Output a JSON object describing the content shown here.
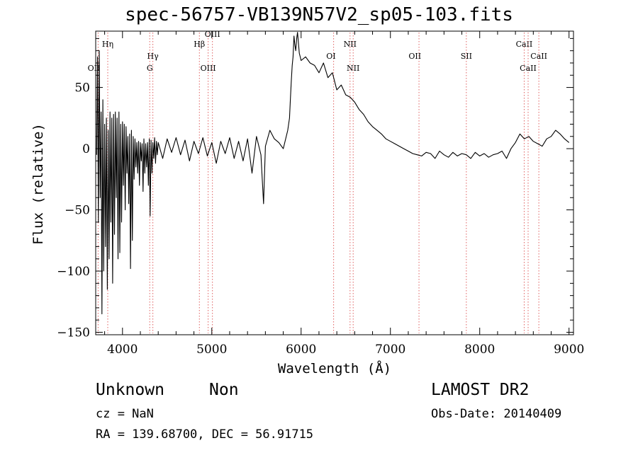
{
  "page": {
    "obj_class": "Unknown",
    "obj_subclass": "Non",
    "survey": "LAMOST DR2",
    "cz": "cz = NaN",
    "obs_date": "Obs-Date: 20140409",
    "ra_dec": "RA = 139.68700, DEC =  56.91715"
  },
  "colors": {
    "spectrum": "#000000",
    "lines": "#e06060",
    "axes": "#000000"
  },
  "chart_data": {
    "type": "line",
    "title": "spec-56757-VB139N57V2_sp05-103.fits",
    "xlabel": "Wavelength (Å)",
    "ylabel": "Flux (relative)",
    "xlim": [
      3700,
      9050
    ],
    "ylim": [
      -152,
      96
    ],
    "xticks": [
      4000,
      5000,
      6000,
      7000,
      8000,
      9000
    ],
    "xtick_labels": [
      "4000",
      "5000",
      "6000",
      "7000",
      "8000",
      "9000"
    ],
    "yticks": [
      50,
      0,
      -50,
      -100,
      -150
    ],
    "ytick_labels": [
      "50",
      "0",
      "−50",
      "−100",
      "−150"
    ],
    "grid": false,
    "spectrum": {
      "x": [
        3710,
        3720,
        3730,
        3740,
        3750,
        3760,
        3770,
        3780,
        3790,
        3800,
        3810,
        3820,
        3830,
        3840,
        3850,
        3860,
        3870,
        3880,
        3890,
        3900,
        3910,
        3920,
        3930,
        3940,
        3950,
        3960,
        3970,
        3980,
        3990,
        4000,
        4010,
        4020,
        4030,
        4040,
        4050,
        4060,
        4070,
        4080,
        4090,
        4100,
        4110,
        4120,
        4130,
        4140,
        4150,
        4160,
        4170,
        4180,
        4190,
        4200,
        4210,
        4220,
        4230,
        4240,
        4250,
        4260,
        4270,
        4280,
        4290,
        4300,
        4310,
        4320,
        4330,
        4340,
        4350,
        4360,
        4370,
        4380,
        4390,
        4400,
        4450,
        4500,
        4550,
        4600,
        4650,
        4700,
        4750,
        4800,
        4850,
        4900,
        4950,
        5000,
        5050,
        5100,
        5150,
        5200,
        5250,
        5300,
        5350,
        5400,
        5450,
        5500,
        5550,
        5580,
        5600,
        5650,
        5700,
        5750,
        5800,
        5850,
        5870,
        5880,
        5890,
        5900,
        5910,
        5920,
        5930,
        5940,
        5950,
        5960,
        5980,
        6000,
        6050,
        6100,
        6150,
        6200,
        6250,
        6300,
        6350,
        6400,
        6450,
        6500,
        6550,
        6600,
        6650,
        6700,
        6750,
        6800,
        6850,
        6900,
        6950,
        7000,
        7050,
        7100,
        7150,
        7200,
        7250,
        7300,
        7350,
        7400,
        7450,
        7500,
        7550,
        7600,
        7650,
        7700,
        7750,
        7800,
        7850,
        7900,
        7950,
        8000,
        8050,
        8100,
        8150,
        8200,
        8250,
        8300,
        8350,
        8400,
        8450,
        8500,
        8550,
        8600,
        8650,
        8700,
        8750,
        8800,
        8850,
        8900,
        8950,
        9000
      ],
      "y": [
        -5,
        75,
        -60,
        80,
        -40,
        30,
        -135,
        40,
        -100,
        20,
        -80,
        25,
        -115,
        15,
        -90,
        30,
        -60,
        25,
        -110,
        28,
        -70,
        30,
        -40,
        25,
        -90,
        30,
        -85,
        20,
        -60,
        22,
        -30,
        20,
        -50,
        18,
        -20,
        10,
        -45,
        12,
        -98,
        15,
        -75,
        10,
        -25,
        8,
        -15,
        5,
        -20,
        6,
        -30,
        5,
        -10,
        4,
        -35,
        8,
        -20,
        4,
        -15,
        5,
        -30,
        8,
        -55,
        7,
        -20,
        5,
        -8,
        9,
        -12,
        6,
        -5,
        5,
        -8,
        8,
        -3,
        9,
        -5,
        7,
        -10,
        6,
        -4,
        9,
        -6,
        5,
        -12,
        6,
        -4,
        9,
        -8,
        6,
        -10,
        8,
        -20,
        10,
        -5,
        -45,
        2,
        15,
        8,
        5,
        0,
        15,
        25,
        40,
        55,
        68,
        75,
        92,
        85,
        80,
        90,
        95,
        78,
        72,
        75,
        70,
        68,
        62,
        70,
        58,
        62,
        48,
        52,
        44,
        42,
        38,
        32,
        28,
        22,
        18,
        15,
        12,
        8,
        6,
        4,
        2,
        0,
        -2,
        -4,
        -5,
        -6,
        -3,
        -4,
        -8,
        -2,
        -5,
        -7,
        -3,
        -6,
        -4,
        -5,
        -8,
        -3,
        -6,
        -4,
        -7,
        -5,
        -4,
        -2,
        -8,
        0,
        5,
        12,
        8,
        10,
        6,
        4,
        2,
        8,
        10,
        15,
        12,
        8,
        5
      ]
    },
    "lines": [
      {
        "label": "OII",
        "x": 3727,
        "tier": 3,
        "anchor": "end"
      },
      {
        "label": "Hη",
        "x": 3835,
        "tier": 1,
        "anchor": "middle"
      },
      {
        "label": "Hγ",
        "x": 4340,
        "tier": 2,
        "anchor": "middle"
      },
      {
        "label": "G",
        "x": 4305,
        "tier": 3,
        "anchor": "middle"
      },
      {
        "label": "Hβ",
        "x": 4861,
        "tier": 1,
        "anchor": "middle"
      },
      {
        "label": "OIII",
        "x": 4959,
        "tier": 3,
        "anchor": "middle"
      },
      {
        "label": "OIII",
        "x": 5007,
        "tier": 0,
        "anchor": "middle"
      },
      {
        "label": "NII",
        "x": 6548,
        "tier": 1,
        "anchor": "middle"
      },
      {
        "label": "OI",
        "x": 6364,
        "tier": 2,
        "anchor": "end"
      },
      {
        "label": "NII",
        "x": 6583,
        "tier": 3,
        "anchor": "middle"
      },
      {
        "label": "OII",
        "x": 7320,
        "tier": 2,
        "anchor": "end"
      },
      {
        "label": "SII",
        "x": 7850,
        "tier": 2,
        "anchor": "middle"
      },
      {
        "label": "CaII",
        "x": 8498,
        "tier": 1,
        "anchor": "middle"
      },
      {
        "label": "CaII",
        "x": 8542,
        "tier": 3,
        "anchor": "middle"
      },
      {
        "label": "CaII",
        "x": 8662,
        "tier": 2,
        "anchor": "middle"
      }
    ]
  }
}
